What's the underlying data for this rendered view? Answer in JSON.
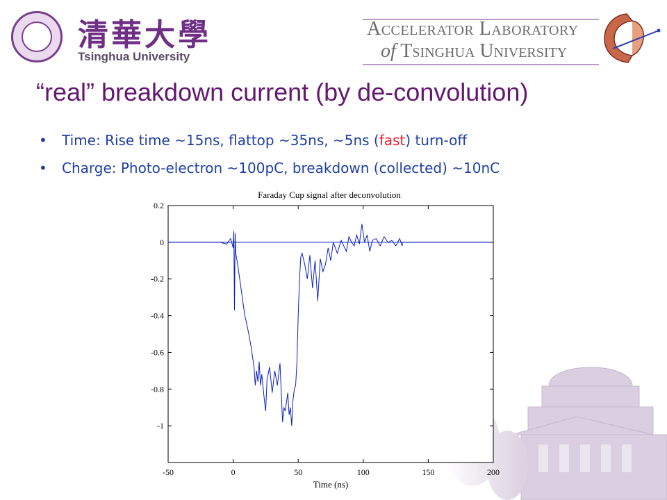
{
  "header": {
    "university_cn": "清華大學",
    "university_en": "Tsinghua University",
    "lab_line1": "Accelerator Laboratory",
    "lab_of": "of",
    "lab_line2": "Tsinghua University",
    "seal": "university-seal",
    "logo": "accelerator-cavity-logo"
  },
  "title": "“real” breakdown current (by de-convolution)",
  "bullets": [
    {
      "before": "Time: Rise time ~15ns, flattop ~35ns, ~5ns (",
      "highlight": "fast",
      "after": ") turn-off"
    },
    {
      "before": "Charge: Photo-electron ~100pC, breakdown (collected) ~10nC",
      "highlight": "",
      "after": ""
    }
  ],
  "colors": {
    "title": "#63176f",
    "bullet_text": "#1f3fa0",
    "highlight": "#e8192c",
    "plot_line": "#0a1fbf"
  },
  "chart_data": {
    "type": "line",
    "title": "Faraday Cup signal after deconvolution",
    "xlabel": "Time (ns)",
    "ylabel": "",
    "xlim": [
      -50,
      200
    ],
    "ylim": [
      -1.2,
      0.2
    ],
    "xticks": [
      "-50",
      "0",
      "50",
      "100",
      "150",
      "200"
    ],
    "yticks": [
      "0.2",
      "0",
      "-0.2",
      "-0.4",
      "-0.6",
      "-0.8",
      "-1"
    ],
    "grid": false,
    "series": [
      {
        "x": [
          -50,
          -10,
          -5,
          -2,
          0,
          0.5,
          1,
          1.5,
          2,
          3,
          5,
          7,
          9,
          10,
          12,
          14,
          16,
          17,
          18,
          19,
          20,
          21,
          22,
          24,
          25,
          26,
          28,
          30,
          32,
          34,
          36,
          38,
          39,
          40,
          42,
          43,
          44,
          45,
          46,
          47,
          48,
          49,
          50,
          51,
          52,
          53,
          55,
          57,
          59,
          61,
          63,
          65,
          67,
          69,
          71,
          73,
          75,
          77,
          80,
          83,
          85,
          87,
          89,
          91,
          93,
          95,
          97,
          99,
          101,
          103,
          105,
          107,
          110,
          113,
          116,
          119,
          122,
          125,
          128,
          130,
          130,
          200
        ],
        "y": [
          0,
          0,
          -0.01,
          0.02,
          -0.03,
          0.06,
          -0.37,
          0.05,
          -0.06,
          -0.1,
          -0.2,
          -0.3,
          -0.4,
          -0.43,
          -0.5,
          -0.58,
          -0.68,
          -0.78,
          -0.7,
          -0.76,
          -0.65,
          -0.78,
          -0.72,
          -0.86,
          -0.92,
          -0.75,
          -0.68,
          -0.82,
          -0.7,
          -0.78,
          -0.66,
          -0.98,
          -0.9,
          -0.92,
          -0.82,
          -0.94,
          -0.9,
          -1.0,
          -0.86,
          -0.8,
          -0.78,
          -0.66,
          -0.4,
          -0.2,
          -0.08,
          -0.06,
          -0.12,
          -0.2,
          -0.07,
          -0.25,
          -0.1,
          -0.32,
          -0.09,
          -0.16,
          -0.12,
          -0.03,
          -0.1,
          0.0,
          -0.06,
          0.01,
          -0.02,
          -0.05,
          0.03,
          0.0,
          -0.02,
          0.04,
          -0.01,
          0.1,
          0.0,
          0.04,
          -0.05,
          0.01,
          0.02,
          -0.02,
          0.03,
          0.0,
          0.01,
          -0.02,
          0.02,
          -0.02,
          0,
          0
        ]
      }
    ]
  }
}
